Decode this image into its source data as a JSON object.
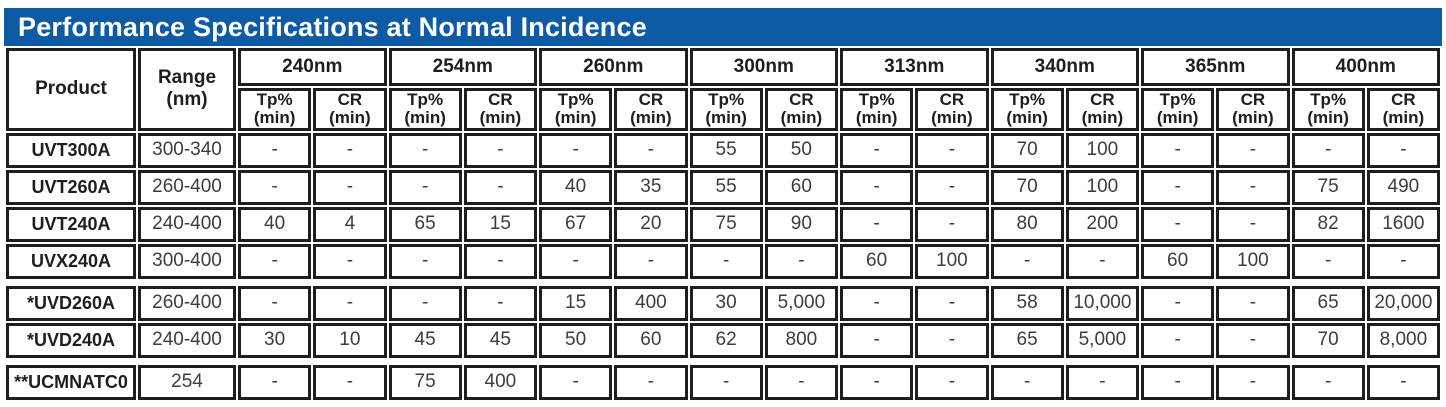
{
  "title": "Performance Specifications at Normal Incidence",
  "colors": {
    "title_bar_bg": "#0d5aa5",
    "title_text": "#ffffff",
    "wavelength_header_bg": "#fad7a1",
    "border": "#1f1d1d",
    "header_text": "#1f1d1d",
    "value_text": "#3d3d3d"
  },
  "table": {
    "product_header": "Product",
    "range_header": "Range\n(nm)",
    "wavelengths": [
      "240nm",
      "254nm",
      "260nm",
      "300nm",
      "313nm",
      "340nm",
      "365nm",
      "400nm"
    ],
    "sub_tp": "Tp%",
    "sub_cr": "CR",
    "sub_min": "(min)",
    "groups": [
      {
        "rows": [
          {
            "product": "UVT300A",
            "range": "300-340",
            "values": [
              "-",
              "-",
              "-",
              "-",
              "-",
              "-",
              "55",
              "50",
              "-",
              "-",
              "70",
              "100",
              "-",
              "-",
              "-",
              "-"
            ]
          },
          {
            "product": "UVT260A",
            "range": "260-400",
            "values": [
              "-",
              "-",
              "-",
              "-",
              "40",
              "35",
              "55",
              "60",
              "-",
              "-",
              "70",
              "100",
              "-",
              "-",
              "75",
              "490"
            ]
          },
          {
            "product": "UVT240A",
            "range": "240-400",
            "values": [
              "40",
              "4",
              "65",
              "15",
              "67",
              "20",
              "75",
              "90",
              "-",
              "-",
              "80",
              "200",
              "-",
              "-",
              "82",
              "1600"
            ]
          },
          {
            "product": "UVX240A",
            "range": "300-400",
            "values": [
              "-",
              "-",
              "-",
              "-",
              "-",
              "-",
              "-",
              "-",
              "60",
              "100",
              "-",
              "-",
              "60",
              "100",
              "-",
              "-"
            ]
          }
        ]
      },
      {
        "rows": [
          {
            "product": "*UVD260A",
            "range": "260-400",
            "values": [
              "-",
              "-",
              "-",
              "-",
              "15",
              "400",
              "30",
              "5,000",
              "-",
              "-",
              "58",
              "10,000",
              "-",
              "-",
              "65",
              "20,000"
            ]
          },
          {
            "product": "*UVD240A",
            "range": "240-400",
            "values": [
              "30",
              "10",
              "45",
              "45",
              "50",
              "60",
              "62",
              "800",
              "-",
              "-",
              "65",
              "5,000",
              "-",
              "-",
              "70",
              "8,000"
            ]
          }
        ]
      },
      {
        "rows": [
          {
            "product": "**UCMNATC0",
            "range": "254",
            "values": [
              "-",
              "-",
              "75",
              "400",
              "-",
              "-",
              "-",
              "-",
              "-",
              "-",
              "-",
              "-",
              "-",
              "-",
              "-",
              "-"
            ]
          }
        ]
      }
    ]
  }
}
